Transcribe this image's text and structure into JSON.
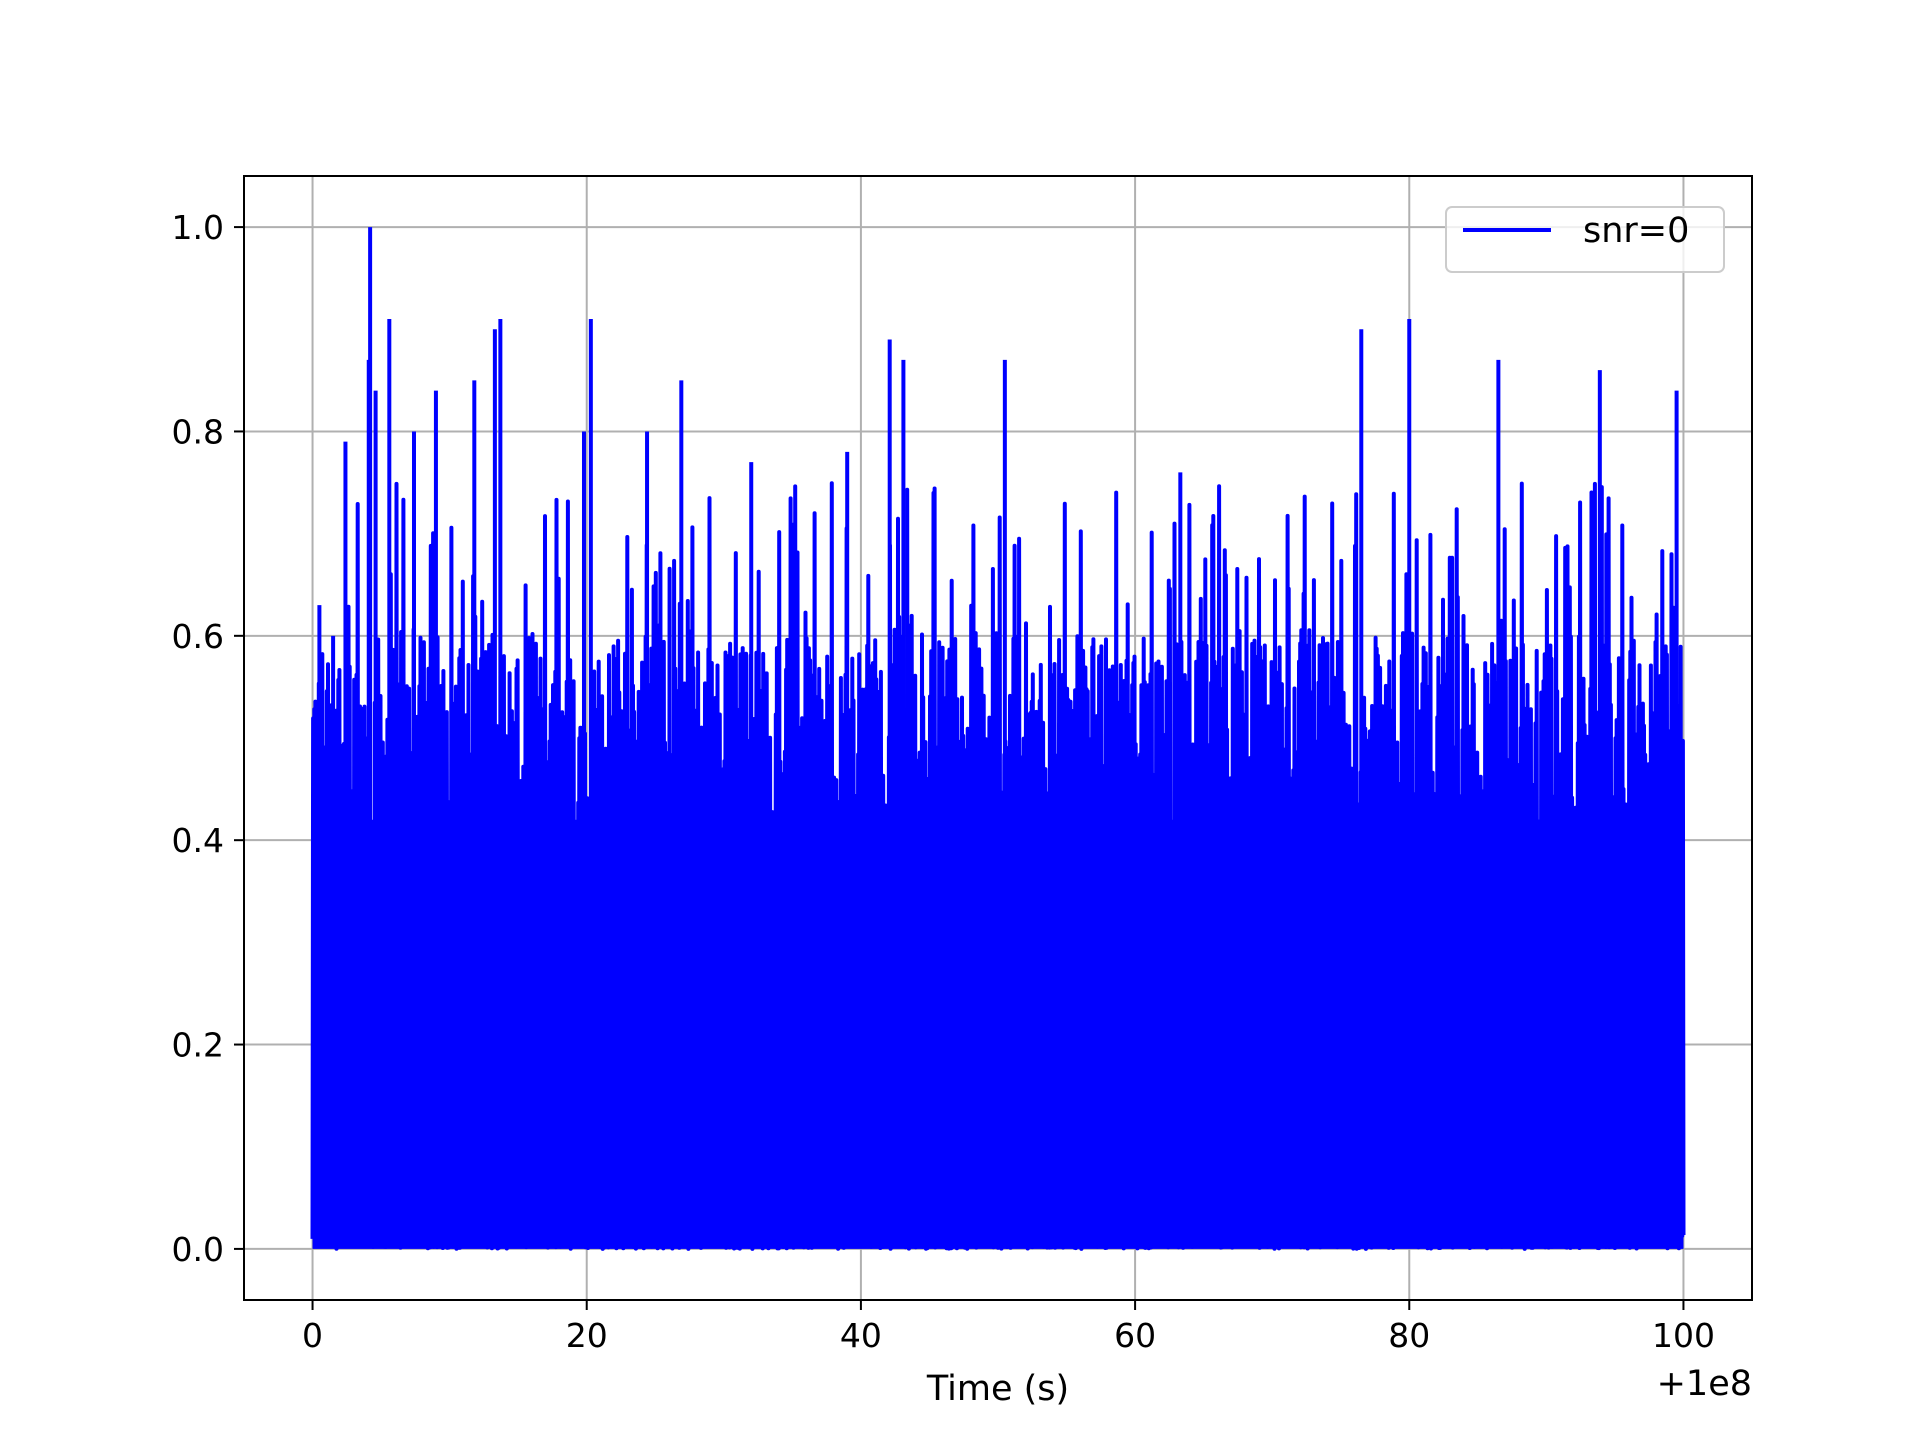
{
  "chart_data": {
    "type": "line",
    "title": "",
    "xlabel": "Time (s)",
    "ylabel": "",
    "x_offset_text": "+1e8",
    "xlim": [
      -5,
      105
    ],
    "ylim": [
      -0.05,
      1.05
    ],
    "x_ticks": [
      0,
      20,
      40,
      60,
      80,
      100
    ],
    "x_tick_labels": [
      "0",
      "20",
      "40",
      "60",
      "80",
      "100"
    ],
    "y_ticks": [
      0.0,
      0.2,
      0.4,
      0.6,
      0.8,
      1.0
    ],
    "y_tick_labels": [
      "0.0",
      "0.2",
      "0.4",
      "0.6",
      "0.8",
      "1.0"
    ],
    "grid": true,
    "legend_position": "top-right",
    "series": [
      {
        "name": "snr=0",
        "color": "#0000ff",
        "x_range": [
          0,
          100
        ],
        "min": 0.0,
        "max": 1.0,
        "peaks": [
          {
            "x": 0.2,
            "y": 0.4
          },
          {
            "x": 0.5,
            "y": 0.63
          },
          {
            "x": 1.5,
            "y": 0.6
          },
          {
            "x": 2.4,
            "y": 0.79
          },
          {
            "x": 4.1,
            "y": 0.87
          },
          {
            "x": 4.2,
            "y": 1.0
          },
          {
            "x": 4.6,
            "y": 0.84
          },
          {
            "x": 5.6,
            "y": 0.91
          },
          {
            "x": 7.4,
            "y": 0.8
          },
          {
            "x": 9.0,
            "y": 0.84
          },
          {
            "x": 11.8,
            "y": 0.85
          },
          {
            "x": 13.3,
            "y": 0.9
          },
          {
            "x": 13.7,
            "y": 0.91
          },
          {
            "x": 19.8,
            "y": 0.8
          },
          {
            "x": 20.3,
            "y": 0.91
          },
          {
            "x": 24.4,
            "y": 0.8
          },
          {
            "x": 26.9,
            "y": 0.85
          },
          {
            "x": 32.0,
            "y": 0.77
          },
          {
            "x": 39.0,
            "y": 0.78
          },
          {
            "x": 42.1,
            "y": 0.89
          },
          {
            "x": 43.1,
            "y": 0.87
          },
          {
            "x": 50.5,
            "y": 0.87
          },
          {
            "x": 63.3,
            "y": 0.76
          },
          {
            "x": 76.5,
            "y": 0.9
          },
          {
            "x": 80.0,
            "y": 0.91
          },
          {
            "x": 86.5,
            "y": 0.87
          },
          {
            "x": 93.9,
            "y": 0.86
          },
          {
            "x": 99.5,
            "y": 0.84
          }
        ]
      }
    ]
  }
}
